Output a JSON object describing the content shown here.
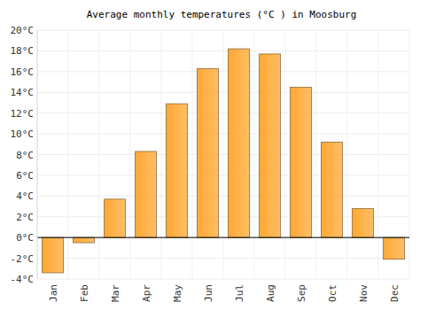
{
  "chart_data": {
    "type": "bar",
    "title": "Average monthly temperatures (°C ) in Moosburg",
    "categories": [
      "Jan",
      "Feb",
      "Mar",
      "Apr",
      "May",
      "Jun",
      "Jul",
      "Aug",
      "Sep",
      "Oct",
      "Nov",
      "Dec"
    ],
    "values": [
      -3.4,
      -0.5,
      3.7,
      8.3,
      12.9,
      16.3,
      18.2,
      17.7,
      14.5,
      9.2,
      2.8,
      -2.1
    ],
    "color": "#ffa833",
    "ylim": [
      -4,
      20
    ],
    "yticks": [
      {
        "value": -4,
        "label": "-4°C"
      },
      {
        "value": -2,
        "label": "-2°C"
      },
      {
        "value": 0,
        "label": "0°C"
      },
      {
        "value": 2,
        "label": "2°C"
      },
      {
        "value": 4,
        "label": "4°C"
      },
      {
        "value": 6,
        "label": "6°C"
      },
      {
        "value": 8,
        "label": "8°C"
      },
      {
        "value": 10,
        "label": "10°C"
      },
      {
        "value": 12,
        "label": "12°C"
      },
      {
        "value": 14,
        "label": "14°C"
      },
      {
        "value": 16,
        "label": "16°C"
      },
      {
        "value": 18,
        "label": "18°C"
      },
      {
        "value": 20,
        "label": "20°C"
      }
    ],
    "grid": true
  }
}
